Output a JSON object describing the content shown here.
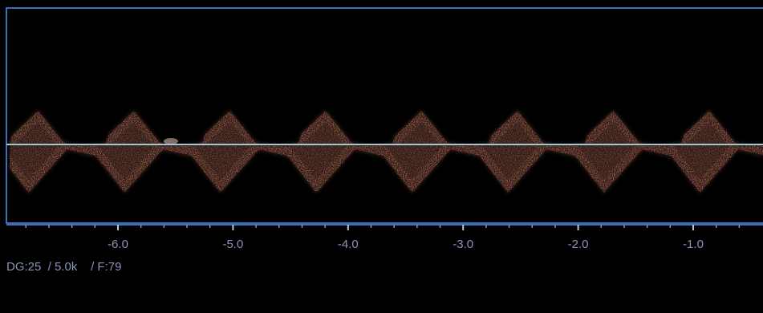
{
  "doppler": {
    "frame_color": "#3d6fb4",
    "baseline_color": "#9fc8d8",
    "signal_color": "#d9826a",
    "signal_highlight_color": "#ffd8c8",
    "text_color": "#8a94b8",
    "cycles": 7,
    "axis": {
      "unit": "s",
      "range": [
        -7.0,
        -0.5
      ],
      "labeled_ticks": [
        -6.0,
        -5.0,
        -4.0,
        -3.0,
        -2.0,
        -1.0
      ],
      "labels": [
        "-6.0",
        "-5.0",
        "-4.0",
        "-3.0",
        "-2.0",
        "-1.0"
      ],
      "minor_tick_step": 0.2
    }
  },
  "settings": {
    "gain": "DG:25",
    "prf": "/ 5.0k",
    "filter": "/ F:79"
  }
}
